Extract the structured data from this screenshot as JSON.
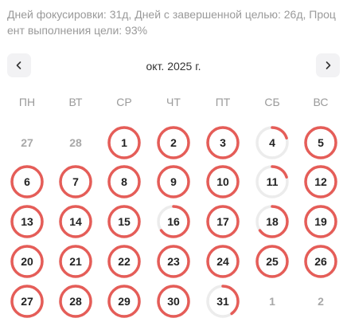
{
  "summary": "Дней фокусировки: 31д, Дней с завершенной целью: 26д, Процент выполнения цели: 93%",
  "month_title": "окт. 2025 г.",
  "nav": {
    "prev_icon": "chevron-left-icon",
    "next_icon": "chevron-right-icon"
  },
  "weekdays": [
    "ПН",
    "ВТ",
    "СР",
    "ЧТ",
    "ПТ",
    "СБ",
    "ВС"
  ],
  "colors": {
    "ring": "#e55d58",
    "track": "#ececec"
  },
  "weeks": [
    [
      {
        "day": "27",
        "other": true
      },
      {
        "day": "28",
        "other": true
      },
      {
        "day": "1",
        "progress": 1
      },
      {
        "day": "2",
        "progress": 1
      },
      {
        "day": "3",
        "progress": 1
      },
      {
        "day": "4",
        "progress": 0.2
      },
      {
        "day": "5",
        "progress": 1
      }
    ],
    [
      {
        "day": "6",
        "progress": 1
      },
      {
        "day": "7",
        "progress": 1
      },
      {
        "day": "8",
        "progress": 1
      },
      {
        "day": "9",
        "progress": 1
      },
      {
        "day": "10",
        "progress": 1
      },
      {
        "day": "11",
        "progress": 0.2
      },
      {
        "day": "12",
        "progress": 1
      }
    ],
    [
      {
        "day": "13",
        "progress": 1
      },
      {
        "day": "14",
        "progress": 1
      },
      {
        "day": "15",
        "progress": 1
      },
      {
        "day": "16",
        "progress": 0.65
      },
      {
        "day": "17",
        "progress": 1
      },
      {
        "day": "18",
        "progress": 0.65
      },
      {
        "day": "19",
        "progress": 1
      }
    ],
    [
      {
        "day": "20",
        "progress": 1
      },
      {
        "day": "21",
        "progress": 1
      },
      {
        "day": "22",
        "progress": 1
      },
      {
        "day": "23",
        "progress": 1
      },
      {
        "day": "24",
        "progress": 1
      },
      {
        "day": "25",
        "progress": 1
      },
      {
        "day": "26",
        "progress": 1
      }
    ],
    [
      {
        "day": "27",
        "progress": 1
      },
      {
        "day": "28",
        "progress": 1
      },
      {
        "day": "29",
        "progress": 1
      },
      {
        "day": "30",
        "progress": 1
      },
      {
        "day": "31",
        "progress": 0.4
      },
      {
        "day": "1",
        "other": true
      },
      {
        "day": "2",
        "other": true
      }
    ]
  ]
}
